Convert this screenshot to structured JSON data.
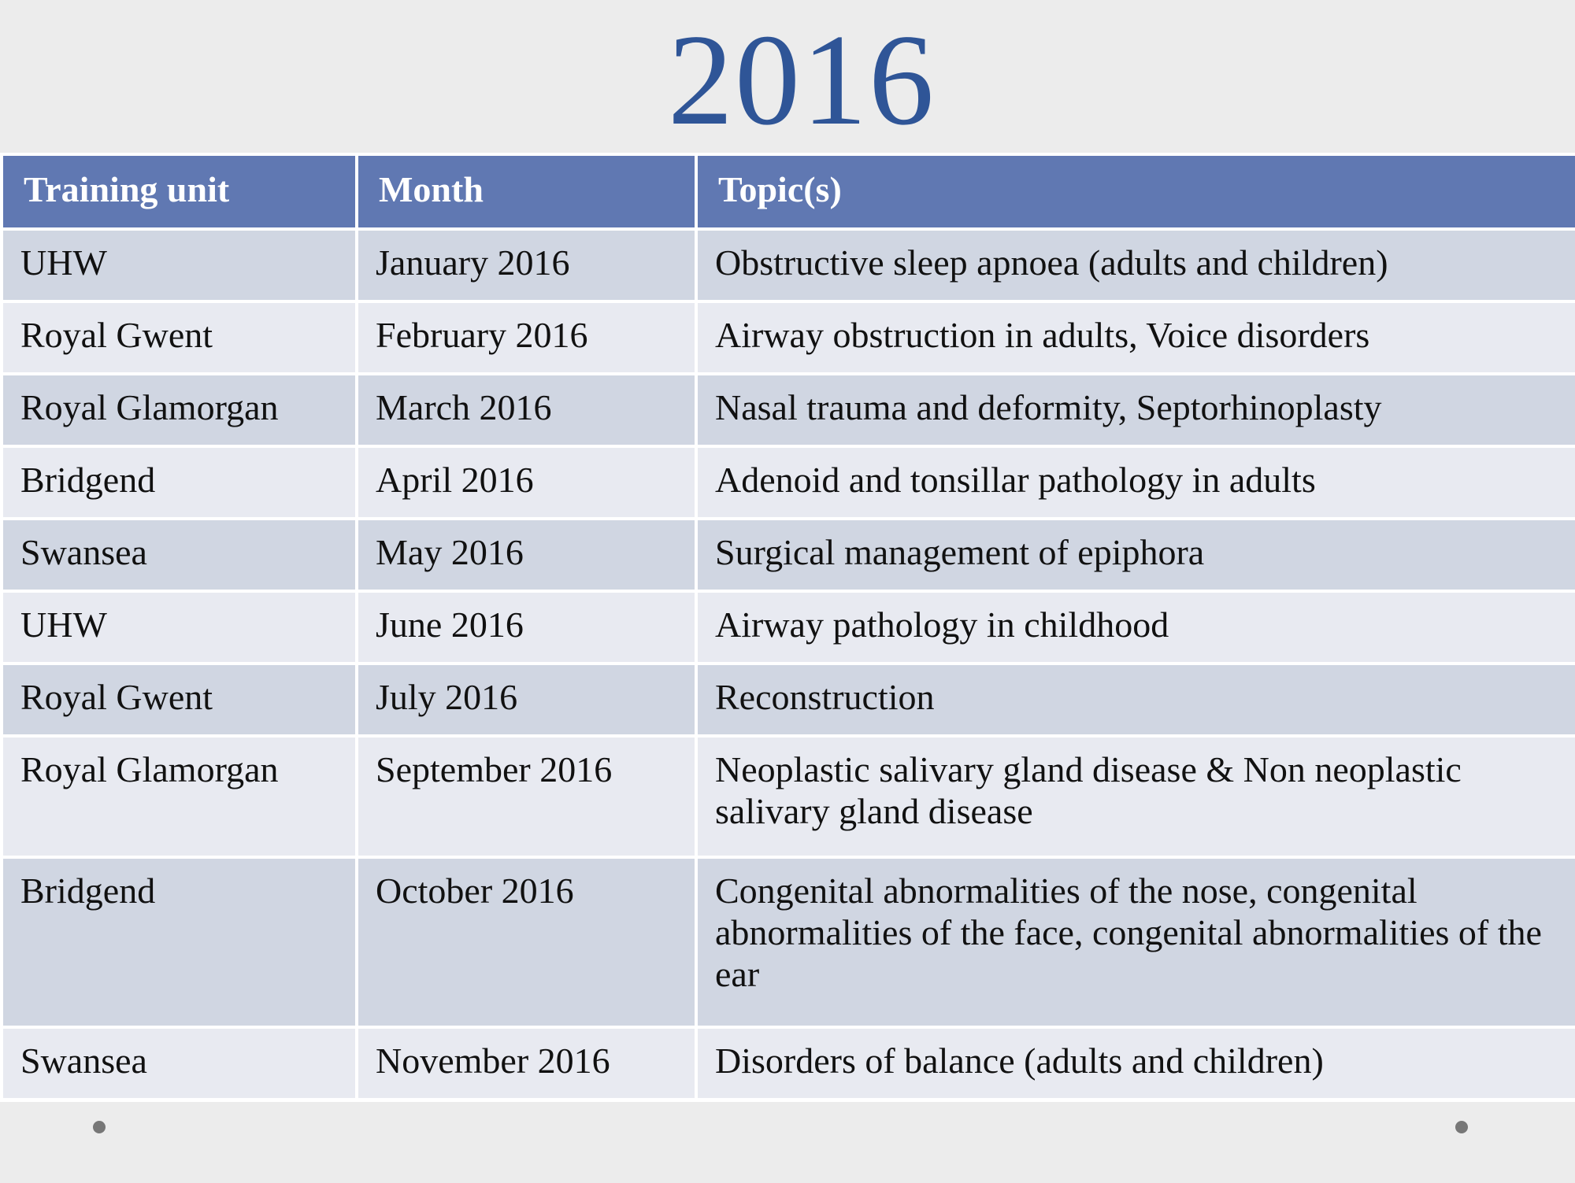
{
  "title": "2016",
  "table": {
    "headers": [
      "Training unit",
      "Month",
      "Topic(s)"
    ],
    "rows": [
      [
        "UHW",
        "January 2016",
        "Obstructive sleep apnoea (adults and children)"
      ],
      [
        "Royal Gwent",
        "February 2016",
        "Airway obstruction in adults, Voice disorders"
      ],
      [
        "Royal Glamorgan",
        "March 2016",
        "Nasal trauma and deformity, Septorhinoplasty"
      ],
      [
        "Bridgend",
        "April 2016",
        "Adenoid and tonsillar pathology in adults"
      ],
      [
        "Swansea",
        "May 2016",
        "Surgical management of epiphora"
      ],
      [
        "UHW",
        "June 2016",
        "Airway pathology in childhood"
      ],
      [
        "Royal Gwent",
        "July 2016",
        "Reconstruction"
      ],
      [
        "Royal Glamorgan",
        "September 2016",
        "Neoplastic salivary gland disease & Non neoplastic salivary gland disease"
      ],
      [
        "Bridgend",
        "October 2016",
        "Congenital abnormalities of the nose, congenital abnormalities of the face, congenital abnormalities of the ear"
      ],
      [
        "Swansea",
        "November 2016",
        "Disorders of balance (adults and children)"
      ]
    ]
  }
}
